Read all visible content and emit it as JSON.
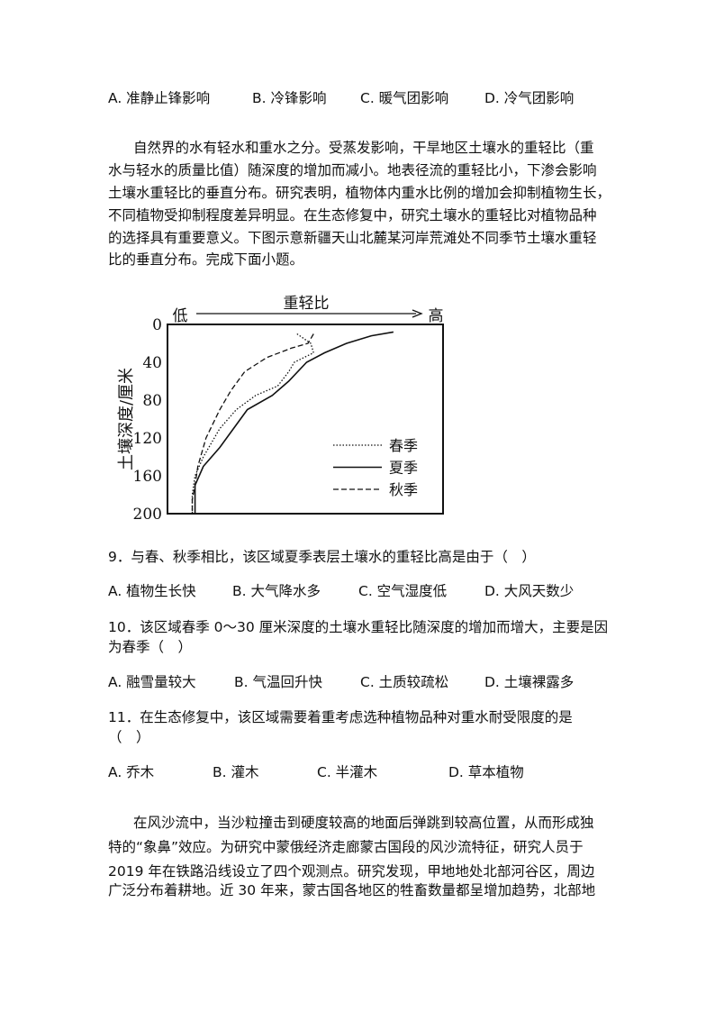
{
  "prev_options": [
    "A. 准静止锋影响",
    "B. 冷锋影响",
    "C. 暖气团影响",
    "D. 冷气团影响"
  ],
  "passage1": [
    "自然界的水有轻水和重水之分。受蒸发影响，干旱地区土壤水的重轻比（重",
    "水与轻水的质量比值）随深度的增加而减小。地表径流的重轻比小，下渗会影响",
    "土壤水重轻比的垂直分布。研究表明，植物体内重水比例的增加会抑制植物生长，",
    "不同植物受抑制程度差异明显。在生态修复中，研究土壤水的重轻比对植物品种",
    "的选择具有重要意义。下图示意新疆天山北麓某河岸荒滩处不同季节土壤水重轻",
    "比的垂直分布。完成下面小题。"
  ],
  "chart_data": {
    "type": "line",
    "title": "重轻比",
    "x_low_label": "低",
    "x_high_label": "高",
    "xlabel": "重轻比",
    "ylabel": "土壤深度/厘米",
    "y_ticks": [
      "0",
      "40",
      "80",
      "120",
      "160",
      "200"
    ],
    "ylim": [
      0,
      200
    ],
    "y_inverted": true,
    "xlim": [
      0,
      1
    ],
    "x_note": "relative, unlabeled axis from low to high",
    "legend_position": "bottom-right",
    "series": [
      {
        "name": "春季",
        "style": "dotted",
        "points": [
          [
            0.47,
            10
          ],
          [
            0.52,
            20
          ],
          [
            0.53,
            30
          ],
          [
            0.46,
            40
          ],
          [
            0.44,
            50
          ],
          [
            0.4,
            65
          ],
          [
            0.32,
            75
          ],
          [
            0.25,
            90
          ],
          [
            0.19,
            110
          ],
          [
            0.13,
            140
          ],
          [
            0.1,
            160
          ],
          [
            0.09,
            180
          ],
          [
            0.09,
            200
          ]
        ]
      },
      {
        "name": "夏季",
        "style": "solid",
        "points": [
          [
            0.82,
            8
          ],
          [
            0.74,
            12
          ],
          [
            0.65,
            20
          ],
          [
            0.57,
            30
          ],
          [
            0.505,
            40
          ],
          [
            0.44,
            60
          ],
          [
            0.38,
            75
          ],
          [
            0.29,
            90
          ],
          [
            0.24,
            110
          ],
          [
            0.19,
            130
          ],
          [
            0.13,
            150
          ],
          [
            0.1,
            170
          ],
          [
            0.1,
            185
          ],
          [
            0.1,
            200
          ]
        ]
      },
      {
        "name": "秋季",
        "style": "dashed",
        "points": [
          [
            0.53,
            10
          ],
          [
            0.51,
            20
          ],
          [
            0.45,
            25
          ],
          [
            0.36,
            35
          ],
          [
            0.28,
            50
          ],
          [
            0.23,
            70
          ],
          [
            0.19,
            90
          ],
          [
            0.14,
            120
          ],
          [
            0.11,
            150
          ],
          [
            0.1,
            170
          ],
          [
            0.09,
            185
          ],
          [
            0.09,
            200
          ]
        ]
      }
    ]
  },
  "questions": [
    {
      "lines": [
        "9．与春、秋季相比，该区域夏季表层土壤水的重轻比高是由于（　）"
      ],
      "options": [
        "A. 植物生长快",
        "B. 大气降水多",
        "C. 空气湿度低",
        "D. 大风天数少"
      ]
    },
    {
      "lines": [
        "10．该区域春季 0～30 厘米深度的土壤水重轻比随深度的增加而增大，主要是因",
        "为春季（　）"
      ],
      "options": [
        "A. 融雪量较大",
        "B. 气温回升快",
        "C. 土质较疏松",
        "D. 土壤裸露多"
      ]
    },
    {
      "lines": [
        "11．在生态修复中，该区域需要着重考虑选种植物品种对重水耐受限度的是",
        "（　）"
      ],
      "options": [
        "A. 乔木",
        "B. 灌木",
        "C. 半灌木",
        "D. 草本植物"
      ]
    }
  ],
  "passage2": [
    "在风沙流中，当沙粒撞击到硬度较高的地面后弹跳到较高位置，从而形成独",
    "特的“象鼻”效应。为研究中蒙俄经济走廊蒙古国段的风沙流特征，研究人员于",
    "2019 年在铁路沿线设立了四个观测点。研究发现，甲地地处北部河谷区，周边",
    "广泛分布着耕地。近 30 年来，蒙古国各地区的牲畜数量都呈增加趋势，北部地"
  ]
}
